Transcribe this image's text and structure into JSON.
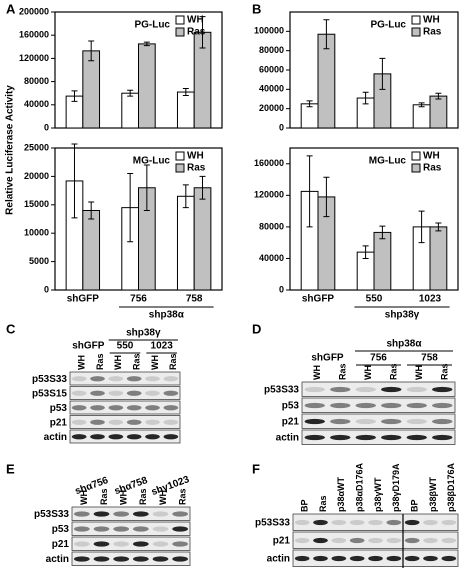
{
  "panel_labels": [
    "A",
    "B",
    "C",
    "D",
    "E",
    "F"
  ],
  "chart_data": [
    {
      "type": "bar",
      "title": "PG-Luc",
      "ylabel": "Relative Luciferase Activity",
      "ylim": [
        0,
        200000
      ],
      "yticks": [
        0,
        40000,
        80000,
        120000,
        160000,
        200000
      ],
      "series": [
        {
          "name": "WH",
          "color": "#ffffff",
          "values": [
            55000,
            60000,
            62000
          ],
          "errors": [
            9000,
            5000,
            6000
          ]
        },
        {
          "name": "Ras",
          "color": "#c0c0c0",
          "values": [
            133000,
            145000,
            165000
          ],
          "errors": [
            17000,
            3000,
            27000
          ]
        }
      ]
    },
    {
      "type": "bar",
      "title": "MG-Luc",
      "categories": [
        "shGFP",
        "756",
        "758"
      ],
      "group_label": "shp38α",
      "ylim": [
        0,
        25000
      ],
      "yticks": [
        0,
        5000,
        10000,
        15000,
        20000,
        25000
      ],
      "series": [
        {
          "name": "WH",
          "color": "#ffffff",
          "values": [
            19200,
            14500,
            16500
          ],
          "errors": [
            6500,
            6000,
            2000
          ]
        },
        {
          "name": "Ras",
          "color": "#c0c0c0",
          "values": [
            14000,
            18000,
            18000
          ],
          "errors": [
            1500,
            4000,
            2000
          ]
        }
      ]
    },
    {
      "type": "bar",
      "title": "PG-Luc",
      "ylim": [
        0,
        120000
      ],
      "yticks": [
        0,
        20000,
        40000,
        60000,
        80000,
        100000
      ],
      "series": [
        {
          "name": "WH",
          "color": "#ffffff",
          "values": [
            25000,
            31000,
            24000
          ],
          "errors": [
            3000,
            6000,
            2000
          ]
        },
        {
          "name": "Ras",
          "color": "#c0c0c0",
          "values": [
            97000,
            56000,
            33000
          ],
          "errors": [
            15000,
            16000,
            3000
          ]
        }
      ]
    },
    {
      "type": "bar",
      "title": "MG-Luc",
      "categories": [
        "shGFP",
        "550",
        "1023"
      ],
      "group_label": "shp38γ",
      "ylim": [
        0,
        180000
      ],
      "yticks": [
        0,
        40000,
        80000,
        120000,
        160000
      ],
      "series": [
        {
          "name": "WH",
          "color": "#ffffff",
          "values": [
            125000,
            48000,
            80000
          ],
          "errors": [
            45000,
            8000,
            20000
          ]
        },
        {
          "name": "Ras",
          "color": "#c0c0c0",
          "values": [
            118000,
            73000,
            80000
          ],
          "errors": [
            25000,
            8000,
            5000
          ]
        }
      ]
    }
  ],
  "blots": [
    {
      "top_label": "shp38γ",
      "group_labels": [
        "shGFP",
        "550",
        "1023"
      ],
      "lanes": [
        "WH",
        "Ras",
        "WH",
        "Ras",
        "WH",
        "Ras"
      ],
      "rows": [
        "p53S33",
        "p53S15",
        "p53",
        "p21",
        "actin"
      ]
    },
    {
      "top_label": "shp38α",
      "group_labels": [
        "shGFP",
        "756",
        "758"
      ],
      "lanes": [
        "WH",
        "Ras",
        "WH",
        "Ras",
        "WH",
        "Ras"
      ],
      "rows": [
        "p53S33",
        "p53",
        "p21",
        "actin"
      ]
    },
    {
      "group_labels": [
        "shα756",
        "shα758",
        "shγ1023"
      ],
      "lanes": [
        "WH",
        "Ras",
        "WH",
        "Ras",
        "WH",
        "Ras"
      ],
      "rows": [
        "p53S33",
        "p53",
        "p21",
        "actin"
      ]
    },
    {
      "lanes": [
        "BP",
        "Ras",
        "p38αWT",
        "p38αD176A",
        "p38γWT",
        "p38γD179A",
        "BP",
        "p38βWT",
        "p38βD176A"
      ],
      "rows": [
        "p53S33",
        "p21",
        "actin"
      ]
    }
  ]
}
